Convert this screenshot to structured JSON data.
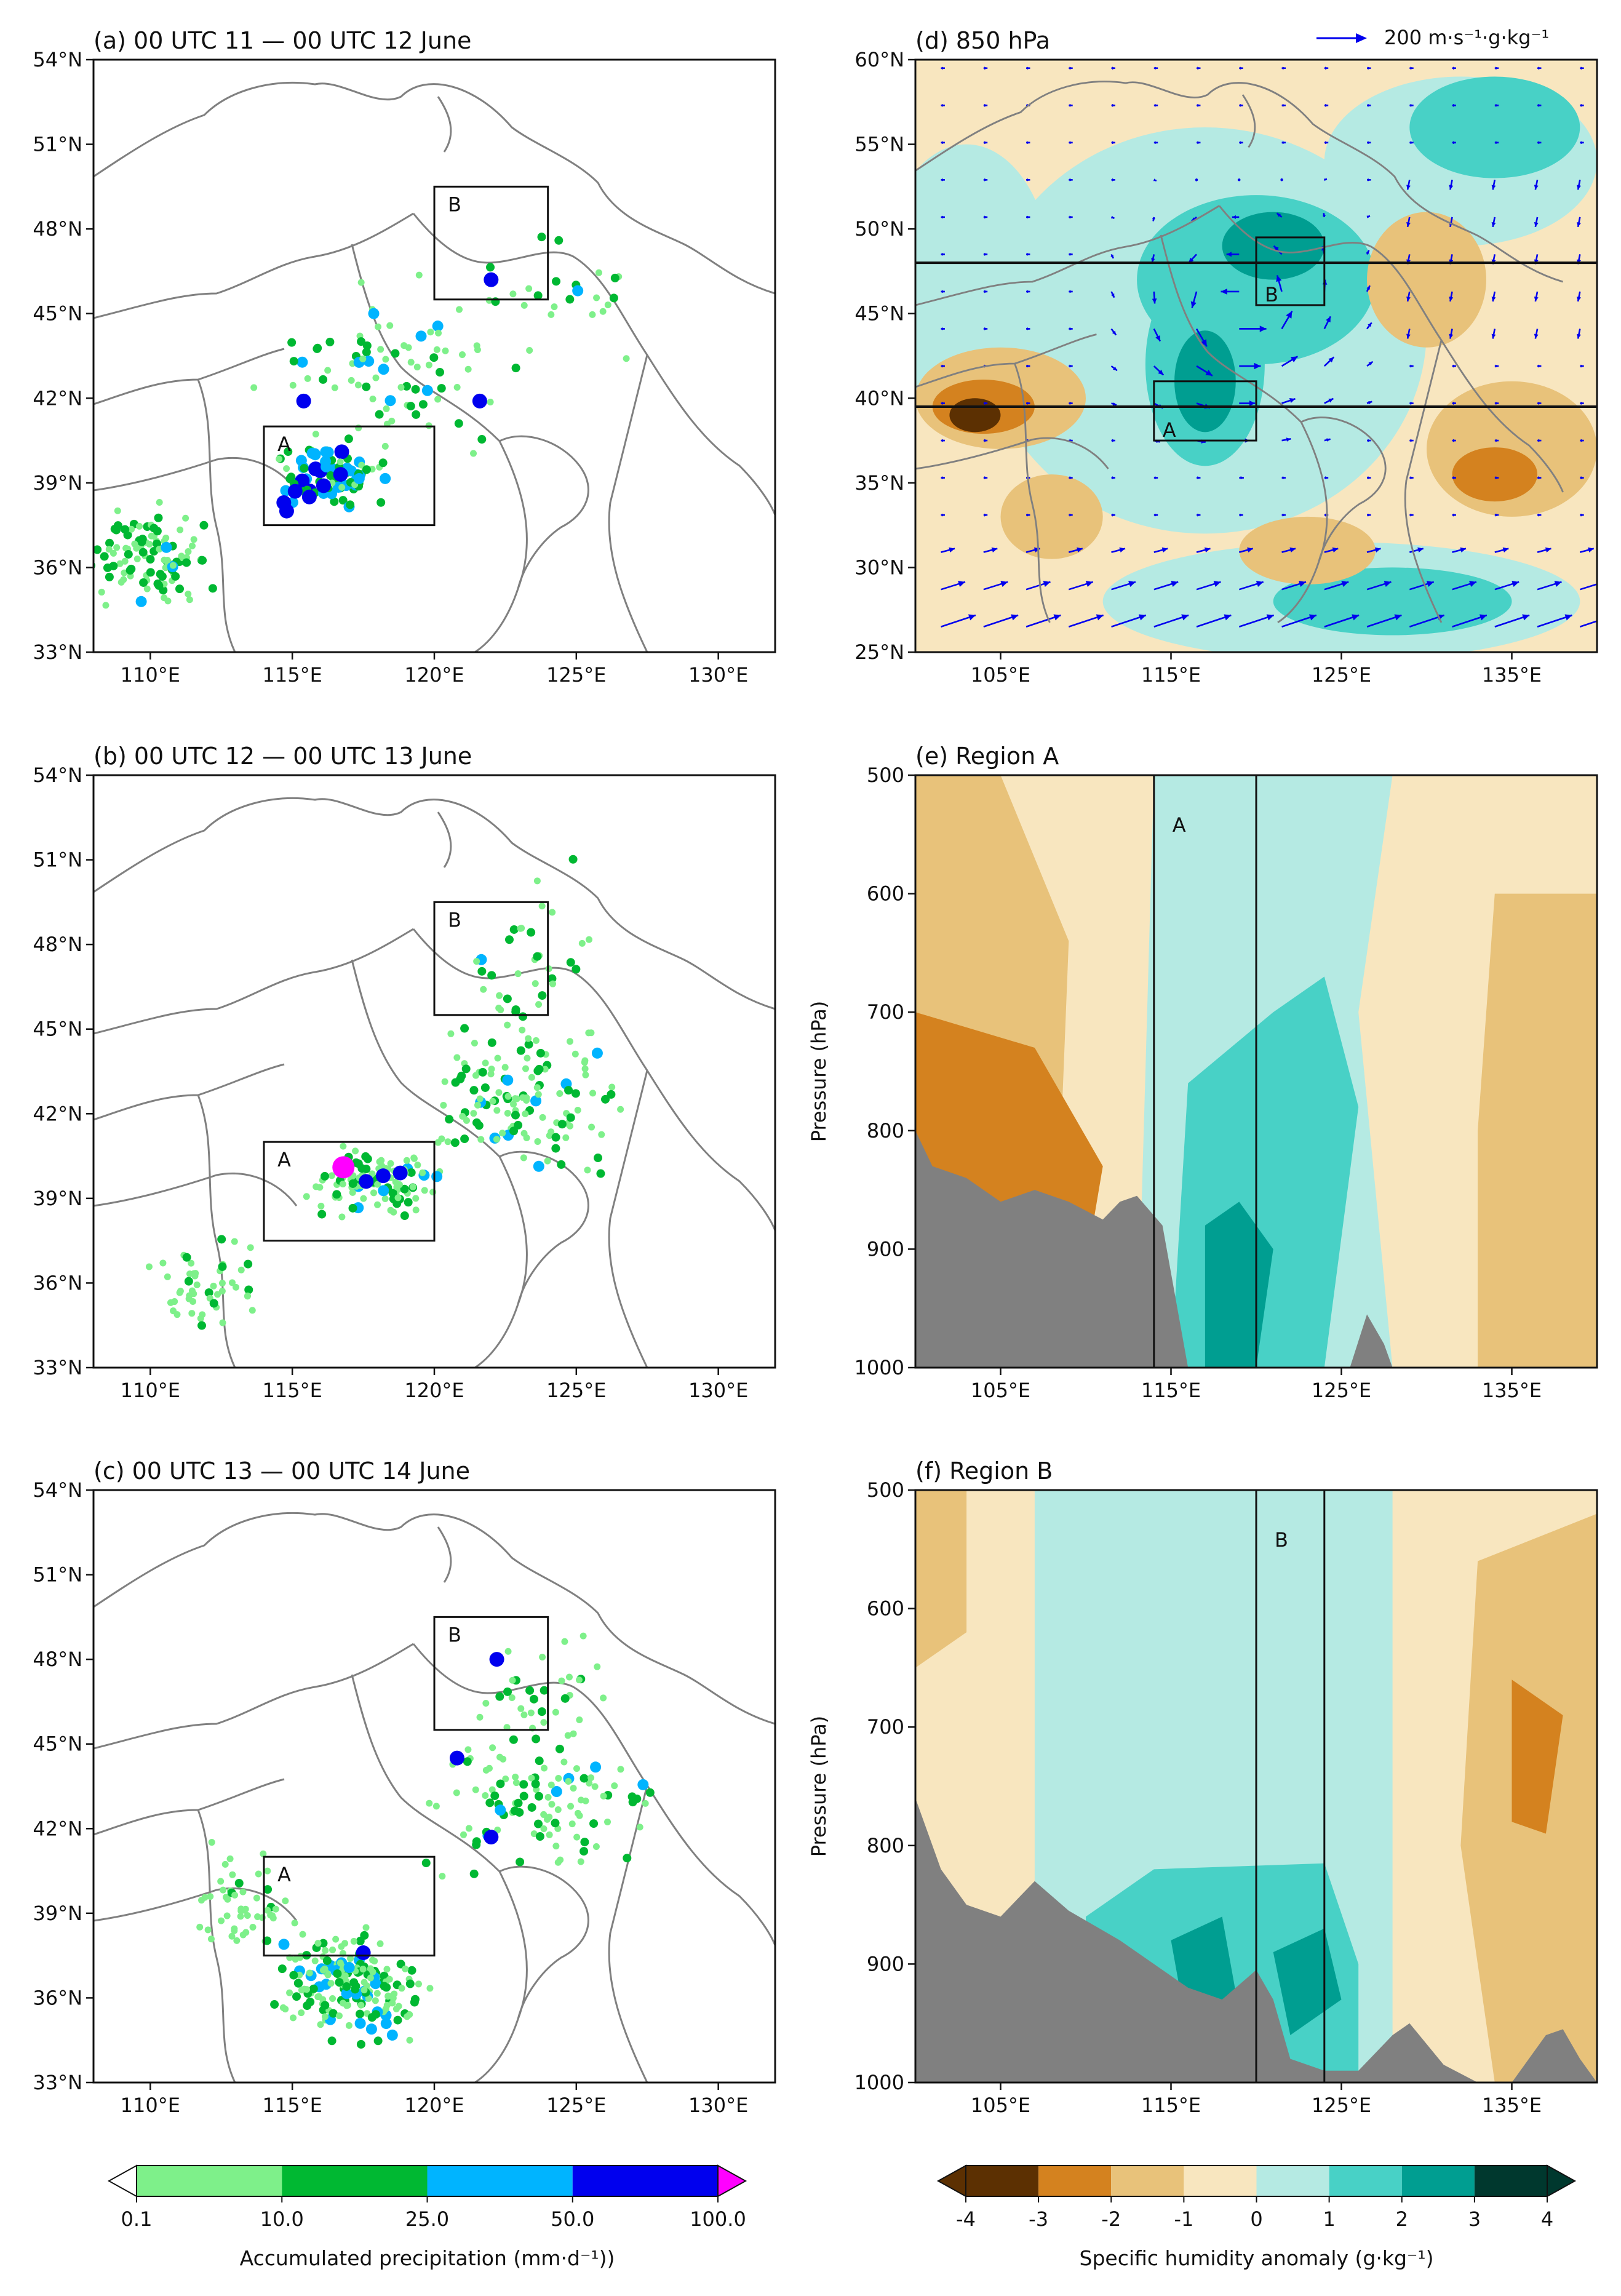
{
  "colors": {
    "precip": [
      "#7ef08a",
      "#00b832",
      "#00b4ff",
      "#0000ee",
      "#ff00ff"
    ],
    "humidity_neg": [
      "#5c3002",
      "#d4821f",
      "#e8c27a",
      "#f8e6bf"
    ],
    "humidity_pos": [
      "#b5eae3",
      "#48d1c6",
      "#009e91",
      "#00382e"
    ],
    "vector": "#0000ee",
    "terrain": "#808080",
    "coast": "#808080"
  },
  "panels": {
    "a": {
      "title": "(a) 00 UTC 11 — 00 UTC 12 June"
    },
    "b": {
      "title": "(b) 00 UTC 12 — 00 UTC 13 June"
    },
    "c": {
      "title": "(c) 00 UTC 13 — 00 UTC 14 June"
    },
    "d": {
      "title": "(d) 850 hPa",
      "reference_vector": "200 m·s⁻¹·g·kg⁻¹"
    },
    "e": {
      "title": "(e) Region A",
      "ylabel": "Pressure (hPa)",
      "box_label": "A"
    },
    "f": {
      "title": "(f) Region B",
      "ylabel": "Pressure (hPa)",
      "box_label": "B"
    }
  },
  "chart_data": [
    {
      "type": "scatter",
      "id": "precip_maps",
      "panels": [
        "a",
        "b",
        "c"
      ],
      "xlim": [
        108,
        132
      ],
      "ylim": [
        33,
        54
      ],
      "xticks": [
        "110°E",
        "115°E",
        "120°E",
        "125°E",
        "130°E"
      ],
      "yticks": [
        "33°N",
        "36°N",
        "39°N",
        "42°N",
        "45°N",
        "48°N",
        "51°N",
        "54°N"
      ],
      "xtick_values": [
        110,
        115,
        120,
        125,
        130
      ],
      "ytick_values": [
        33,
        36,
        39,
        42,
        45,
        48,
        51,
        54
      ],
      "boxes": [
        {
          "label": "A",
          "lon": [
            114,
            120
          ],
          "lat": [
            37.5,
            41
          ]
        },
        {
          "label": "B",
          "lon": [
            120,
            124
          ],
          "lat": [
            45.5,
            49.5
          ]
        }
      ],
      "highlight_points": {
        "a": [
          [
            115.4,
            41.9
          ],
          [
            121.6,
            41.9
          ],
          [
            122.0,
            46.2
          ],
          [
            114.7,
            38.3
          ],
          [
            114.8,
            38.0
          ],
          [
            115.1,
            38.7
          ],
          [
            115.6,
            38.5
          ],
          [
            116.1,
            38.9
          ],
          [
            116.7,
            39.3
          ]
        ],
        "b": [
          [
            116.8,
            40.1
          ],
          [
            118.2,
            39.8
          ],
          [
            118.8,
            39.9
          ],
          [
            117.6,
            39.6
          ]
        ],
        "c": [
          [
            122.2,
            48.0
          ],
          [
            120.8,
            44.5
          ],
          [
            122.0,
            41.7
          ],
          [
            117.5,
            37.6
          ]
        ]
      }
    },
    {
      "type": "heatmap",
      "id": "humidity_850",
      "panel": "d",
      "xlim": [
        100,
        140
      ],
      "ylim": [
        25,
        60
      ],
      "xticks": [
        "105°E",
        "115°E",
        "125°E",
        "135°E"
      ],
      "yticks": [
        "25°N",
        "30°N",
        "35°N",
        "40°N",
        "45°N",
        "50°N",
        "55°N",
        "60°N"
      ],
      "xtick_values": [
        105,
        115,
        125,
        135
      ],
      "ytick_values": [
        25,
        30,
        35,
        40,
        45,
        50,
        55,
        60
      ],
      "section_lines_lat": [
        48,
        39.5
      ],
      "boxes": [
        {
          "label": "A",
          "lon": [
            114,
            120
          ],
          "lat": [
            37.5,
            41
          ]
        },
        {
          "label": "B",
          "lon": [
            120,
            124
          ],
          "lat": [
            45.5,
            49.5
          ]
        }
      ]
    },
    {
      "type": "heatmap",
      "id": "section_a",
      "panel": "e",
      "xlim": [
        100,
        140
      ],
      "ylim": [
        1000,
        500
      ],
      "xticks": [
        "105°E",
        "115°E",
        "125°E",
        "135°E"
      ],
      "yticks": [
        "500",
        "600",
        "700",
        "800",
        "900",
        "1000"
      ],
      "xtick_values": [
        105,
        115,
        125,
        135
      ],
      "ytick_values": [
        500,
        600,
        700,
        800,
        900,
        1000
      ],
      "box_lon": [
        114,
        120
      ]
    },
    {
      "type": "heatmap",
      "id": "section_b",
      "panel": "f",
      "xlim": [
        100,
        140
      ],
      "ylim": [
        1000,
        500
      ],
      "xticks": [
        "105°E",
        "115°E",
        "125°E",
        "135°E"
      ],
      "yticks": [
        "500",
        "600",
        "700",
        "800",
        "900",
        "1000"
      ],
      "xtick_values": [
        105,
        115,
        125,
        135
      ],
      "ytick_values": [
        500,
        600,
        700,
        800,
        900,
        1000
      ],
      "box_lon": [
        120,
        124
      ]
    },
    {
      "type": "colorbar",
      "id": "precip_colorbar",
      "ticks": [
        "0.1",
        "10.0",
        "25.0",
        "50.0",
        "100.0"
      ],
      "label": "Accumulated precipitation (mm·d⁻¹))"
    },
    {
      "type": "colorbar",
      "id": "humidity_colorbar",
      "ticks": [
        "-4",
        "-3",
        "-2",
        "-1",
        "0",
        "1",
        "2",
        "3",
        "4"
      ],
      "label": "Specific humidity anomaly (g·kg⁻¹)"
    }
  ]
}
